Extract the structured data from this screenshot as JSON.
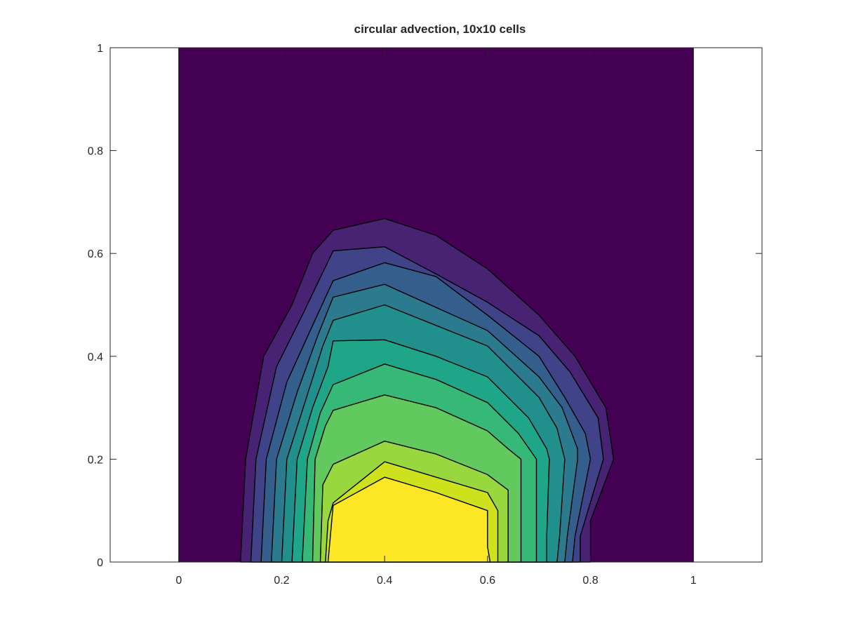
{
  "chart_data": {
    "type": "contour",
    "title": "circular advection, 10x10 cells",
    "xlabel": "",
    "ylabel": "",
    "xlim": [
      -0.1333,
      1.1333
    ],
    "ylim": [
      0,
      1
    ],
    "xticks": [
      "0",
      "0.2",
      "0.4",
      "0.6",
      "0.8",
      "1"
    ],
    "yticks": [
      "0",
      "0.2",
      "0.4",
      "0.6",
      "0.8",
      "1"
    ],
    "domain": {
      "x": [
        0,
        1
      ],
      "y": [
        0,
        1
      ]
    },
    "colormap": "viridis",
    "background_color": "#440154",
    "line_color": "#000000",
    "grid": false,
    "peak": {
      "x": 0.4,
      "y": 0.0
    },
    "contours": [
      {
        "level": 1,
        "color": "#482374",
        "points": [
          [
            0.12,
            0
          ],
          [
            0.13,
            0.2
          ],
          [
            0.165,
            0.4
          ],
          [
            0.22,
            0.5
          ],
          [
            0.26,
            0.6
          ],
          [
            0.3,
            0.645
          ],
          [
            0.4,
            0.668
          ],
          [
            0.5,
            0.635
          ],
          [
            0.6,
            0.57
          ],
          [
            0.7,
            0.48
          ],
          [
            0.77,
            0.4
          ],
          [
            0.83,
            0.3
          ],
          [
            0.845,
            0.2
          ],
          [
            0.8,
            0.08
          ],
          [
            0.8,
            0
          ]
        ]
      },
      {
        "level": 2,
        "color": "#404387",
        "points": [
          [
            0.14,
            0
          ],
          [
            0.15,
            0.2
          ],
          [
            0.19,
            0.38
          ],
          [
            0.24,
            0.48
          ],
          [
            0.3,
            0.605
          ],
          [
            0.4,
            0.613
          ],
          [
            0.5,
            0.56
          ],
          [
            0.6,
            0.505
          ],
          [
            0.7,
            0.44
          ],
          [
            0.76,
            0.37
          ],
          [
            0.815,
            0.28
          ],
          [
            0.825,
            0.2
          ],
          [
            0.78,
            0.05
          ],
          [
            0.78,
            0
          ]
        ]
      },
      {
        "level": 3,
        "color": "#345f8d",
        "points": [
          [
            0.16,
            0
          ],
          [
            0.17,
            0.2
          ],
          [
            0.21,
            0.35
          ],
          [
            0.26,
            0.46
          ],
          [
            0.3,
            0.547
          ],
          [
            0.4,
            0.582
          ],
          [
            0.5,
            0.555
          ],
          [
            0.6,
            0.48
          ],
          [
            0.7,
            0.4
          ],
          [
            0.75,
            0.32
          ],
          [
            0.79,
            0.25
          ],
          [
            0.8,
            0.2
          ],
          [
            0.77,
            0.05
          ],
          [
            0.765,
            0
          ]
        ]
      },
      {
        "level": 4,
        "color": "#2b7a8e",
        "points": [
          [
            0.18,
            0
          ],
          [
            0.19,
            0.2
          ],
          [
            0.23,
            0.33
          ],
          [
            0.27,
            0.44
          ],
          [
            0.3,
            0.515
          ],
          [
            0.4,
            0.54
          ],
          [
            0.5,
            0.495
          ],
          [
            0.6,
            0.45
          ],
          [
            0.7,
            0.36
          ],
          [
            0.745,
            0.3
          ],
          [
            0.775,
            0.22
          ],
          [
            0.775,
            0.2
          ],
          [
            0.755,
            0.05
          ],
          [
            0.75,
            0
          ]
        ]
      },
      {
        "level": 5,
        "color": "#21908d",
        "points": [
          [
            0.2,
            0
          ],
          [
            0.21,
            0.2
          ],
          [
            0.245,
            0.31
          ],
          [
            0.28,
            0.42
          ],
          [
            0.3,
            0.47
          ],
          [
            0.4,
            0.5
          ],
          [
            0.5,
            0.46
          ],
          [
            0.6,
            0.42
          ],
          [
            0.7,
            0.32
          ],
          [
            0.735,
            0.26
          ],
          [
            0.75,
            0.2
          ],
          [
            0.74,
            0.05
          ],
          [
            0.735,
            0
          ]
        ]
      },
      {
        "level": 6,
        "color": "#1fa588",
        "points": [
          [
            0.22,
            0
          ],
          [
            0.23,
            0.2
          ],
          [
            0.26,
            0.3
          ],
          [
            0.29,
            0.38
          ],
          [
            0.3,
            0.43
          ],
          [
            0.4,
            0.432
          ],
          [
            0.5,
            0.4
          ],
          [
            0.6,
            0.36
          ],
          [
            0.68,
            0.28
          ],
          [
            0.715,
            0.22
          ],
          [
            0.72,
            0.2
          ],
          [
            0.715,
            0.05
          ],
          [
            0.715,
            0
          ]
        ]
      },
      {
        "level": 7,
        "color": "#36b877",
        "points": [
          [
            0.24,
            0
          ],
          [
            0.25,
            0.2
          ],
          [
            0.275,
            0.29
          ],
          [
            0.3,
            0.345
          ],
          [
            0.4,
            0.385
          ],
          [
            0.5,
            0.355
          ],
          [
            0.6,
            0.31
          ],
          [
            0.66,
            0.25
          ],
          [
            0.695,
            0.2
          ],
          [
            0.695,
            0.05
          ],
          [
            0.695,
            0
          ]
        ]
      },
      {
        "level": 8,
        "color": "#62c95f",
        "points": [
          [
            0.26,
            0
          ],
          [
            0.265,
            0.2
          ],
          [
            0.285,
            0.265
          ],
          [
            0.3,
            0.295
          ],
          [
            0.4,
            0.325
          ],
          [
            0.5,
            0.3
          ],
          [
            0.6,
            0.255
          ],
          [
            0.64,
            0.22
          ],
          [
            0.665,
            0.2
          ],
          [
            0.665,
            0.05
          ],
          [
            0.665,
            0
          ]
        ]
      },
      {
        "level": 9,
        "color": "#98d83e",
        "points": [
          [
            0.275,
            0
          ],
          [
            0.28,
            0.15
          ],
          [
            0.3,
            0.19
          ],
          [
            0.4,
            0.235
          ],
          [
            0.5,
            0.21
          ],
          [
            0.6,
            0.17
          ],
          [
            0.64,
            0.14
          ],
          [
            0.64,
            0.05
          ],
          [
            0.64,
            0
          ]
        ]
      },
      {
        "level": 10,
        "color": "#cde11d",
        "points": [
          [
            0.285,
            0
          ],
          [
            0.29,
            0.08
          ],
          [
            0.3,
            0.115
          ],
          [
            0.4,
            0.195
          ],
          [
            0.5,
            0.165
          ],
          [
            0.6,
            0.135
          ],
          [
            0.62,
            0.1
          ],
          [
            0.62,
            0.05
          ],
          [
            0.62,
            0
          ]
        ]
      },
      {
        "level": 11,
        "color": "#fde725",
        "points": [
          [
            0.29,
            0
          ],
          [
            0.3,
            0.11
          ],
          [
            0.4,
            0.165
          ],
          [
            0.5,
            0.135
          ],
          [
            0.6,
            0.1
          ],
          [
            0.6,
            0.03
          ],
          [
            0.605,
            0
          ]
        ]
      }
    ]
  }
}
